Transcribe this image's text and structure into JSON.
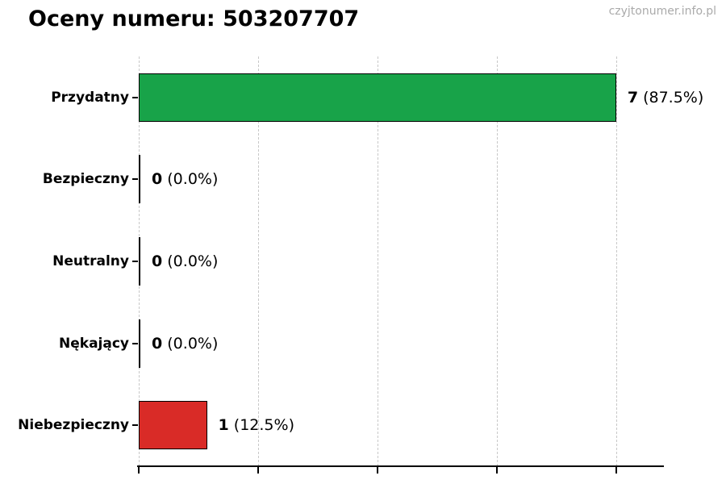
{
  "title": "Oceny numeru: 503207707",
  "watermark": "czyjtonumer.info.pl",
  "chart_data": {
    "type": "bar",
    "orientation": "horizontal",
    "title": "Oceny numeru: 503207707",
    "categories": [
      "Przydatny",
      "Bezpieczny",
      "Neutralny",
      "Nękający",
      "Niebezpieczny"
    ],
    "values": [
      7,
      0,
      0,
      0,
      1
    ],
    "percentages": [
      87.5,
      0.0,
      0.0,
      0.0,
      12.5
    ],
    "value_labels": [
      {
        "count": "7",
        "pct": "(87.5%)"
      },
      {
        "count": "0",
        "pct": "(0.0%)"
      },
      {
        "count": "0",
        "pct": "(0.0%)"
      },
      {
        "count": "0",
        "pct": "(0.0%)"
      },
      {
        "count": "1",
        "pct": "(12.5%)"
      }
    ],
    "bar_colors": [
      "#18a349",
      "#ffffff",
      "#ffffff",
      "#ffffff",
      "#d92b27"
    ],
    "bar_edge_color": "#000000",
    "xlim": [
      0,
      7.7
    ],
    "grid_values": [
      0,
      1.75,
      3.5,
      5.25,
      7
    ],
    "grid_style": "dashed",
    "grid_color": "#c8c8c8",
    "axis_color": "#000000",
    "legend": "none",
    "xlabel": "",
    "ylabel": ""
  }
}
